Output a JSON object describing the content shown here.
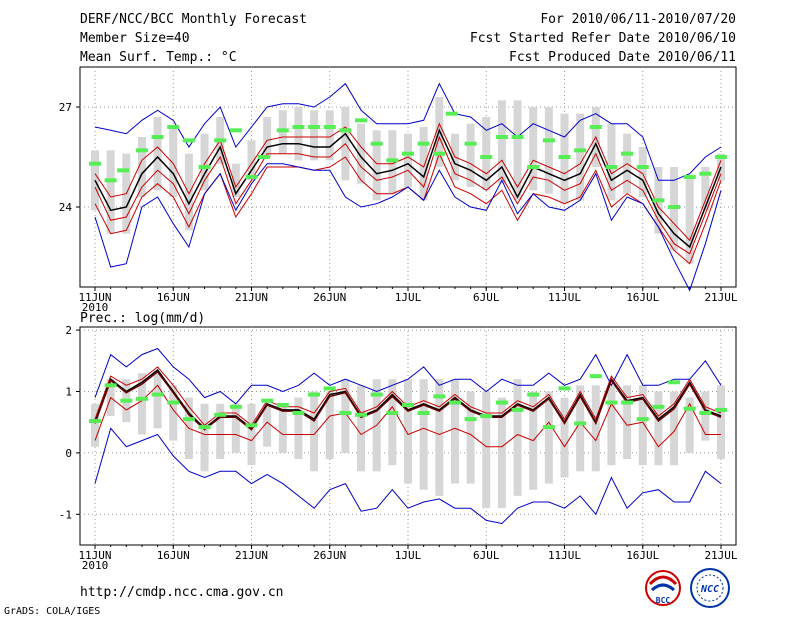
{
  "header": {
    "title": "DERF/NCC/BCC Monthly Forecast",
    "member_size": "Member Size=40",
    "variable": "Mean Surf. Temp.: °C",
    "period": "For 2010/06/11-2010/07/20",
    "started": "Fcst Started Refer Date 2010/06/10",
    "produced": "Fcst Produced Date 2010/06/11"
  },
  "footer": {
    "url": "http://cmdp.ncc.cma.gov.cn",
    "grads": "GrADS: COLA/IGES",
    "logo_bcc": "BCC",
    "logo_ncc": "NCC"
  },
  "colors": {
    "envelope": "#0000cc",
    "spread": "#cc0000",
    "mean": "#000000",
    "box": "#d6d6d6",
    "marker": "#55ee55",
    "grid": "#999999"
  },
  "chart_data": [
    {
      "type": "line",
      "title": "Mean Surf. Temp.: °C",
      "xlabel": "",
      "ylabel": "",
      "x_tick_labels": [
        "11JUN",
        "16JUN",
        "21JUN",
        "26JUN",
        "1JUL",
        "6JUL",
        "11JUL",
        "16JUL",
        "21JUL"
      ],
      "x_tick_days": [
        0,
        5,
        10,
        15,
        20,
        25,
        30,
        35,
        40
      ],
      "year_label": "2010",
      "ylim": [
        21.6,
        28.2
      ],
      "y_ticks": [
        24,
        27
      ],
      "grid": true,
      "series": [
        {
          "name": "max",
          "color": "#0000cc",
          "values": [
            26.4,
            26.3,
            26.2,
            26.6,
            26.9,
            26.6,
            25.8,
            26.5,
            27.0,
            25.8,
            26.4,
            27.0,
            27.1,
            27.1,
            27.0,
            27.3,
            27.7,
            26.9,
            26.5,
            26.5,
            26.5,
            26.6,
            27.7,
            26.8,
            26.7,
            26.3,
            26.5,
            26.1,
            26.5,
            26.3,
            26.1,
            26.6,
            26.8,
            26.5,
            26.5,
            26.1,
            24.8,
            24.8,
            25.0,
            25.5,
            25.8
          ]
        },
        {
          "name": "upper",
          "color": "#cc0000",
          "values": [
            25.0,
            24.3,
            24.4,
            25.4,
            25.8,
            25.3,
            24.4,
            25.3,
            26.0,
            24.6,
            25.3,
            26.0,
            26.1,
            26.1,
            26.1,
            26.1,
            26.4,
            25.8,
            25.3,
            25.3,
            25.5,
            25.2,
            26.5,
            25.5,
            25.3,
            25.0,
            25.4,
            24.6,
            25.4,
            25.2,
            25.0,
            25.3,
            26.1,
            25.0,
            25.3,
            25.0,
            24.0,
            23.5,
            23.0,
            24.2,
            25.4
          ]
        },
        {
          "name": "mean",
          "color": "#000000",
          "values": [
            24.8,
            23.9,
            24.0,
            25.0,
            25.5,
            25.0,
            24.1,
            25.0,
            25.8,
            24.4,
            25.1,
            25.8,
            25.9,
            25.9,
            25.8,
            25.8,
            26.2,
            25.5,
            25.0,
            25.1,
            25.3,
            24.9,
            26.3,
            25.3,
            25.1,
            24.8,
            25.2,
            24.3,
            25.2,
            25.0,
            24.8,
            25.0,
            25.9,
            24.8,
            25.1,
            24.8,
            23.8,
            23.2,
            22.8,
            24.0,
            25.2
          ]
        },
        {
          "name": "lower",
          "color": "#cc0000",
          "values": [
            24.6,
            23.6,
            23.7,
            24.6,
            25.1,
            24.7,
            23.8,
            24.8,
            25.5,
            24.1,
            24.8,
            25.6,
            25.6,
            25.6,
            25.5,
            25.5,
            25.9,
            25.2,
            24.8,
            24.9,
            25.1,
            24.6,
            26.1,
            25.0,
            24.8,
            24.5,
            24.9,
            24.1,
            24.9,
            24.8,
            24.5,
            24.7,
            25.6,
            24.5,
            24.8,
            24.5,
            23.6,
            22.9,
            22.6,
            23.8,
            25.0
          ]
        },
        {
          "name": "lowest",
          "color": "#cc0000",
          "values": [
            24.1,
            23.2,
            23.3,
            24.3,
            24.7,
            24.3,
            23.4,
            24.4,
            25.0,
            23.7,
            24.4,
            25.2,
            25.2,
            25.2,
            25.1,
            25.2,
            25.5,
            24.8,
            24.4,
            24.4,
            24.6,
            24.2,
            25.6,
            24.6,
            24.4,
            24.1,
            24.5,
            23.6,
            24.4,
            24.3,
            24.1,
            24.3,
            25.1,
            24.0,
            24.4,
            24.1,
            23.4,
            22.7,
            22.3,
            23.5,
            24.8
          ]
        },
        {
          "name": "min",
          "color": "#0000cc",
          "values": [
            23.7,
            22.2,
            22.3,
            24.0,
            24.3,
            23.5,
            22.8,
            24.4,
            25.0,
            23.9,
            24.7,
            25.3,
            25.3,
            25.2,
            25.1,
            25.1,
            24.3,
            24.0,
            24.1,
            24.3,
            24.6,
            24.2,
            25.1,
            24.3,
            24.0,
            23.9,
            24.8,
            23.8,
            24.4,
            24.0,
            23.9,
            24.2,
            25.0,
            23.6,
            24.3,
            24.1,
            23.4,
            22.4,
            21.5,
            22.9,
            24.5
          ]
        }
      ],
      "box_top": [
        25.7,
        25.7,
        25.6,
        26.1,
        26.7,
        26.4,
        25.6,
        26.2,
        26.7,
        25.3,
        26.0,
        26.7,
        26.9,
        27.0,
        26.9,
        26.9,
        27.0,
        26.5,
        26.3,
        26.3,
        26.2,
        26.4,
        27.3,
        26.2,
        26.5,
        26.7,
        27.2,
        27.2,
        27.0,
        27.0,
        26.8,
        26.8,
        27.0,
        26.5,
        26.2,
        25.8,
        25.2,
        25.2,
        24.9,
        25.2,
        25.6
      ],
      "box_bottom": [
        23.9,
        23.2,
        23.2,
        24.3,
        24.5,
        24.3,
        23.3,
        24.5,
        25.3,
        24.3,
        24.8,
        25.5,
        25.6,
        25.4,
        25.4,
        25.4,
        24.8,
        24.7,
        24.2,
        24.4,
        24.6,
        24.2,
        25.2,
        24.8,
        24.6,
        24.5,
        24.7,
        24.2,
        24.5,
        24.4,
        24.1,
        24.2,
        25.2,
        24.2,
        24.4,
        24.3,
        23.2,
        22.7,
        22.3,
        23.9,
        24.8
      ],
      "markers": [
        25.3,
        24.8,
        25.1,
        25.7,
        26.1,
        26.4,
        26.0,
        25.2,
        26.0,
        26.3,
        24.9,
        25.5,
        26.3,
        26.4,
        26.4,
        26.4,
        26.3,
        26.6,
        25.9,
        25.4,
        25.6,
        25.9,
        25.6,
        26.8,
        25.9,
        25.5,
        26.1,
        26.1,
        25.2,
        26.0,
        25.5,
        25.7,
        26.4,
        25.2,
        25.6,
        25.2,
        24.2,
        24.0,
        24.9,
        25.0,
        25.5
      ],
      "marker_days": [
        0,
        1,
        1.8,
        3,
        4,
        5,
        6,
        7,
        8,
        9,
        10,
        10.8,
        12,
        13,
        14,
        15,
        16,
        17,
        18,
        19,
        20,
        21,
        22,
        22.8,
        24,
        25,
        26,
        27,
        28,
        29,
        30,
        31,
        32,
        33,
        34,
        35,
        36,
        37,
        38,
        39,
        40
      ]
    },
    {
      "type": "line",
      "title": "Prec.: log(mm/d)",
      "xlabel": "",
      "ylabel": "",
      "x_tick_labels": [
        "11JUN",
        "16JUN",
        "21JUN",
        "26JUN",
        "1JUL",
        "6JUL",
        "11JUL",
        "16JUL",
        "21JUL"
      ],
      "x_tick_days": [
        0,
        5,
        10,
        15,
        20,
        25,
        30,
        35,
        40
      ],
      "year_label": "2010",
      "ylim": [
        -1.5,
        2.05
      ],
      "y_ticks": [
        -1,
        0,
        1,
        2
      ],
      "grid": true,
      "series": [
        {
          "name": "max",
          "color": "#0000cc",
          "values": [
            0.9,
            1.6,
            1.4,
            1.6,
            1.7,
            1.4,
            1.2,
            0.9,
            1.0,
            0.8,
            1.1,
            1.1,
            1.0,
            1.1,
            1.3,
            1.1,
            1.2,
            1.1,
            1.0,
            1.1,
            1.2,
            1.4,
            1.1,
            1.2,
            1.2,
            1.0,
            1.2,
            1.1,
            1.1,
            1.3,
            1.1,
            1.2,
            1.6,
            1.1,
            1.6,
            1.1,
            1.1,
            1.2,
            1.2,
            1.5,
            1.1
          ]
        },
        {
          "name": "upper",
          "color": "#cc0000",
          "values": [
            0.55,
            1.25,
            1.1,
            1.2,
            1.4,
            1.1,
            0.75,
            0.45,
            0.65,
            0.65,
            0.45,
            0.85,
            0.75,
            0.75,
            0.65,
            1.0,
            1.05,
            0.65,
            0.75,
            1.0,
            0.75,
            0.85,
            0.75,
            0.95,
            0.75,
            0.65,
            0.65,
            0.85,
            0.75,
            0.95,
            0.55,
            1.0,
            0.55,
            1.25,
            0.9,
            0.95,
            0.6,
            0.8,
            1.2,
            0.75,
            0.65
          ]
        },
        {
          "name": "mean",
          "color": "#000000",
          "values": [
            0.5,
            1.2,
            1.0,
            1.15,
            1.35,
            1.0,
            0.65,
            0.4,
            0.6,
            0.6,
            0.4,
            0.8,
            0.7,
            0.7,
            0.55,
            0.95,
            1.0,
            0.6,
            0.7,
            0.95,
            0.7,
            0.8,
            0.7,
            0.9,
            0.7,
            0.6,
            0.6,
            0.8,
            0.7,
            0.9,
            0.5,
            0.95,
            0.5,
            1.2,
            0.85,
            0.9,
            0.55,
            0.75,
            1.15,
            0.7,
            0.6
          ]
        },
        {
          "name": "lower",
          "color": "#cc0000",
          "values": [
            0.2,
            0.9,
            0.7,
            0.85,
            1.1,
            0.7,
            0.4,
            0.3,
            0.3,
            0.3,
            0.2,
            0.5,
            0.3,
            0.3,
            0.3,
            0.6,
            0.65,
            0.3,
            0.45,
            0.75,
            0.3,
            0.4,
            0.3,
            0.4,
            0.3,
            0.1,
            0.1,
            0.3,
            0.2,
            0.5,
            0.1,
            0.5,
            0.2,
            0.8,
            0.45,
            0.5,
            0.1,
            0.35,
            0.8,
            0.3,
            0.3
          ]
        },
        {
          "name": "min",
          "color": "#0000cc",
          "values": [
            -0.5,
            0.4,
            0.1,
            0.2,
            0.3,
            -0.05,
            -0.3,
            -0.4,
            -0.3,
            -0.3,
            -0.5,
            -0.35,
            -0.5,
            -0.7,
            -0.9,
            -0.6,
            -0.5,
            -0.95,
            -0.9,
            -0.6,
            -0.9,
            -0.8,
            -0.75,
            -0.9,
            -0.9,
            -1.1,
            -1.15,
            -0.9,
            -0.8,
            -0.8,
            -0.9,
            -0.7,
            -1.0,
            -0.4,
            -0.9,
            -0.65,
            -0.6,
            -0.8,
            -0.8,
            -0.3,
            -0.5
          ]
        },
        {
          "name": "mean_dark",
          "color": "#660000",
          "values": [
            0.48,
            1.18,
            0.98,
            1.12,
            1.32,
            0.98,
            0.62,
            0.38,
            0.58,
            0.58,
            0.38,
            0.78,
            0.68,
            0.68,
            0.52,
            0.92,
            0.98,
            0.58,
            0.68,
            0.92,
            0.68,
            0.78,
            0.68,
            0.88,
            0.68,
            0.58,
            0.58,
            0.78,
            0.68,
            0.88,
            0.48,
            0.92,
            0.48,
            1.18,
            0.82,
            0.88,
            0.52,
            0.72,
            1.12,
            0.68,
            0.58
          ]
        }
      ],
      "box_top": [
        0.8,
        1.2,
        1.2,
        1.3,
        1.3,
        1.1,
        0.9,
        0.8,
        0.8,
        0.8,
        0.8,
        0.8,
        0.8,
        0.9,
        1.0,
        1.0,
        1.2,
        1.1,
        1.2,
        1.2,
        1.2,
        1.2,
        1.2,
        1.2,
        1.0,
        1.0,
        0.9,
        1.2,
        1.0,
        1.0,
        0.9,
        1.1,
        1.1,
        1.1,
        1.1,
        1.1,
        1.0,
        1.0,
        0.9,
        1.0,
        1.1
      ],
      "box_bottom": [
        0.1,
        0.6,
        0.5,
        0.3,
        0.4,
        0.2,
        -0.1,
        -0.3,
        -0.1,
        0.0,
        -0.2,
        0.1,
        0.0,
        -0.1,
        -0.3,
        -0.1,
        0.0,
        -0.3,
        -0.3,
        -0.2,
        -0.5,
        -0.6,
        -0.7,
        -0.5,
        -0.5,
        -0.9,
        -0.9,
        -0.7,
        -0.6,
        -0.5,
        -0.4,
        -0.3,
        -0.3,
        -0.2,
        -0.1,
        -0.2,
        -0.2,
        -0.2,
        0.0,
        0.2,
        -0.1
      ],
      "markers": [
        0.52,
        1.1,
        0.85,
        0.88,
        0.95,
        0.82,
        0.55,
        0.42,
        0.62,
        0.75,
        0.45,
        0.85,
        0.78,
        0.65,
        0.95,
        1.05,
        0.65,
        0.62,
        0.95,
        0.65,
        0.78,
        0.65,
        0.92,
        0.82,
        0.55,
        0.6,
        0.82,
        0.7,
        0.95,
        0.42,
        1.05,
        0.48,
        1.25,
        0.82,
        0.82,
        0.55,
        0.75,
        1.15,
        0.72,
        0.65,
        0.7
      ],
      "marker_days": [
        0,
        1,
        2,
        3,
        4,
        5,
        6,
        7,
        8,
        9,
        10,
        11,
        12,
        13,
        14,
        15,
        16,
        17,
        18,
        19,
        20,
        21,
        22,
        23,
        24,
        25,
        26,
        27,
        28,
        29,
        30,
        31,
        32,
        33,
        34,
        35,
        36,
        37,
        38,
        39,
        40
      ]
    }
  ]
}
